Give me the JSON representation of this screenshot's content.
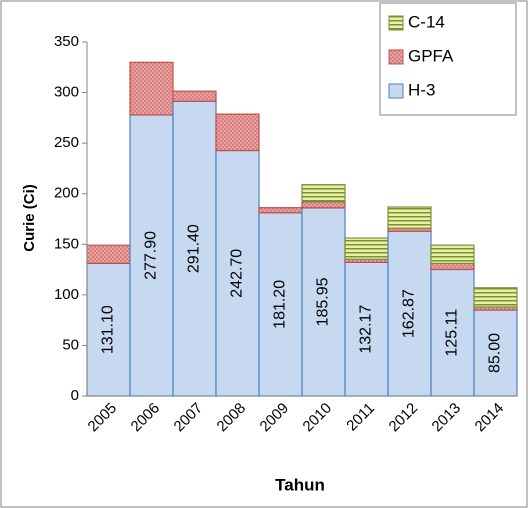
{
  "chart_data": {
    "type": "bar",
    "stacked": true,
    "x_label": "Tahun",
    "y_label": "Curie (Ci)",
    "categories": [
      "2005",
      "2006",
      "2007",
      "2008",
      "2009",
      "2010",
      "2011",
      "2012",
      "2013",
      "2014"
    ],
    "series": [
      {
        "name": "H-3",
        "color": "#c6d9f1",
        "values": [
          131.1,
          277.9,
          291.4,
          242.7,
          181.2,
          185.95,
          132.17,
          162.87,
          125.11,
          85
        ],
        "value_labels": [
          "131.10",
          "277.90",
          "291.40",
          "242.70",
          "181.20",
          "185.95",
          "132.17",
          "162.87",
          "125.11",
          "85.00"
        ]
      },
      {
        "name": "GPFA",
        "color": "#e6a0a0",
        "values": [
          18,
          52,
          10,
          36,
          5,
          6,
          3,
          3,
          6,
          3
        ]
      },
      {
        "name": "C-14",
        "color": "#d7e4bd",
        "values": [
          0,
          0,
          0,
          0,
          0,
          17,
          21,
          21,
          18,
          19
        ]
      }
    ],
    "ylim": [
      0,
      350
    ],
    "yticks": [
      0,
      50,
      100,
      150,
      200,
      250,
      300,
      350
    ],
    "grid": false,
    "legend": "top-right"
  }
}
